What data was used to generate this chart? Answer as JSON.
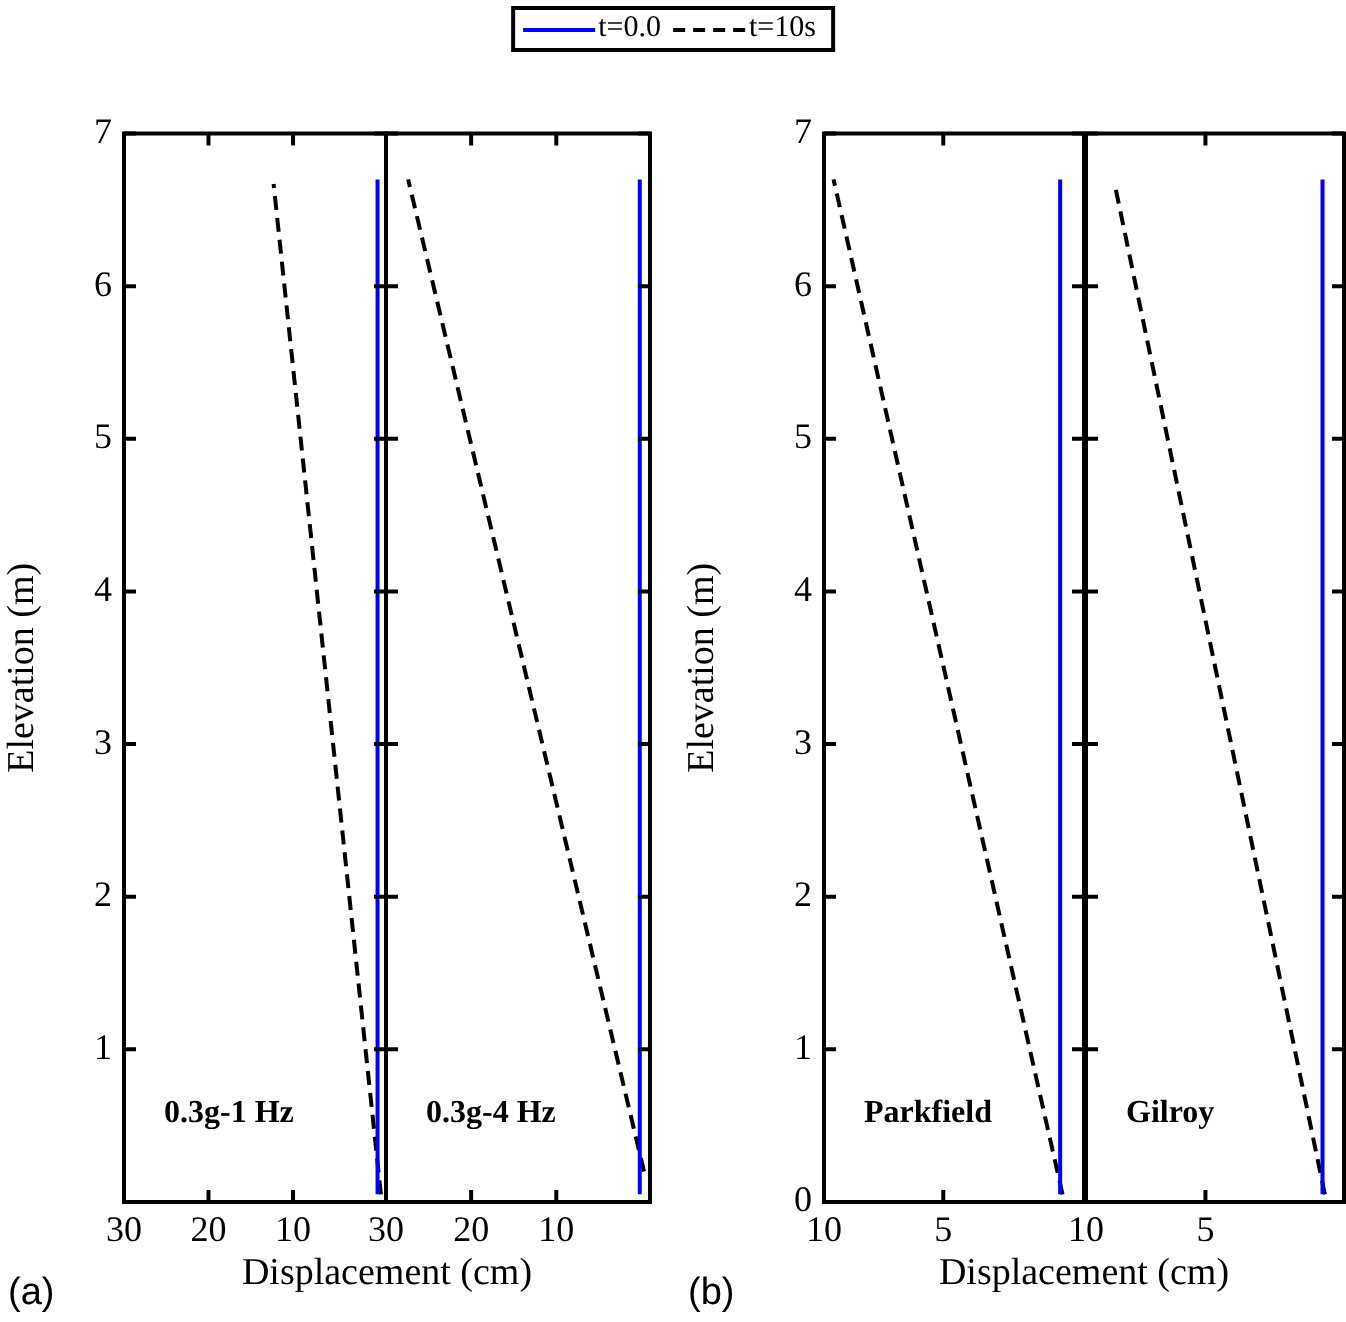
{
  "chart_data": [
    {
      "type": "line",
      "title": "(a)",
      "xlabel": "Displacement (cm)",
      "ylabel": "Elevation (m)",
      "legend": "top",
      "xlim": [
        30,
        -1
      ],
      "xticks": [
        30,
        20,
        10
      ],
      "ylim": [
        0,
        7
      ],
      "yticks": [
        1,
        2,
        3,
        4,
        5,
        6,
        7
      ],
      "annotations": [
        "0.3g-1 Hz"
      ],
      "series": [
        {
          "name": "t=0.0",
          "color": "#0000ff",
          "line_style": "solid",
          "x": [
            0,
            0
          ],
          "values": [
            0.05,
            6.7
          ]
        },
        {
          "name": "t=10s",
          "color": "#000000",
          "line_style": "dashed",
          "x": [
            -0.4,
            12.3
          ],
          "values": [
            0.05,
            6.67
          ]
        }
      ]
    },
    {
      "type": "line",
      "tick_labels": "x",
      "xlim": [
        30,
        -1
      ],
      "xticks": [
        30,
        20,
        10
      ],
      "ylim": [
        0,
        7
      ],
      "yticks": [
        1,
        2,
        3,
        4,
        5,
        6,
        7
      ],
      "annotations": [
        "0.3g-4 Hz"
      ],
      "series": [
        {
          "color": "#0000ff",
          "line_style": "solid",
          "x": [
            0.2,
            0.2
          ],
          "values": [
            0.05,
            6.7
          ]
        },
        {
          "color": "#000000",
          "line_style": "dashed",
          "x": [
            -0.3,
            27.4
          ],
          "values": [
            0.2,
            6.7
          ]
        }
      ]
    },
    {
      "type": "line",
      "title": "(b)",
      "xlabel": "Displacement (cm)",
      "ylabel": "Elevation (m)",
      "xlim": [
        10,
        -0.9
      ],
      "xticks": [
        10,
        5
      ],
      "ylim": [
        0,
        7
      ],
      "yticks": [
        0,
        1,
        2,
        3,
        4,
        5,
        6,
        7
      ],
      "annotations": [
        "Parkfield"
      ],
      "series": [
        {
          "color": "#0000ff",
          "line_style": "solid",
          "x": [
            0.1,
            0.1
          ],
          "values": [
            0.05,
            6.7
          ]
        },
        {
          "color": "#000000",
          "line_style": "dashed",
          "x": [
            0,
            9.6
          ],
          "values": [
            0.05,
            6.7
          ]
        }
      ]
    },
    {
      "type": "line",
      "tick_labels": "x",
      "xlim": [
        10,
        -0.8
      ],
      "xticks": [
        10,
        5
      ],
      "ylim": [
        0,
        7
      ],
      "yticks": [
        0,
        1,
        2,
        3,
        4,
        5,
        6,
        7
      ],
      "annotations": [
        "Gilroy"
      ],
      "series": [
        {
          "color": "#0000ff",
          "line_style": "solid",
          "x": [
            0.1,
            0.1
          ],
          "values": [
            0.05,
            6.7
          ]
        },
        {
          "color": "#000000",
          "line_style": "dashed",
          "x": [
            0,
            8.8
          ],
          "values": [
            0.05,
            6.67
          ]
        }
      ]
    }
  ]
}
